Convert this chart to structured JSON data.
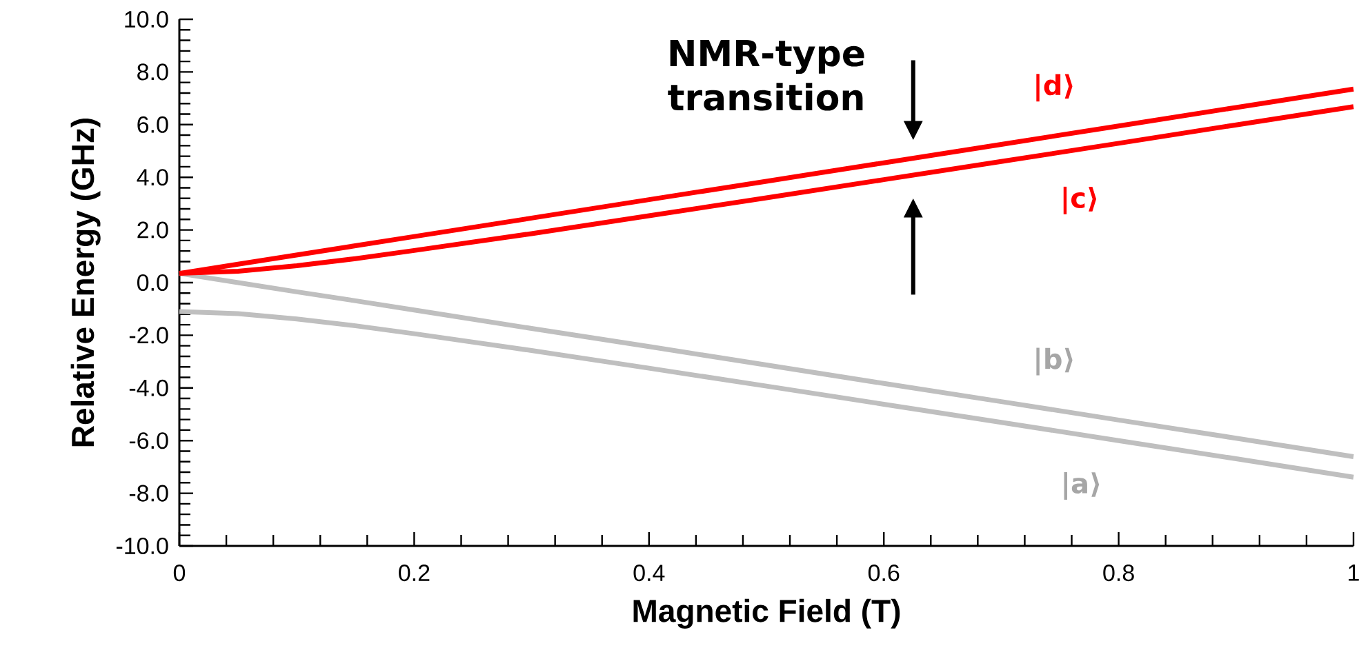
{
  "chart_data": {
    "type": "line",
    "xlabel": "Magnetic Field (T)",
    "ylabel": "Relative Energy (GHz)",
    "x": [
      0,
      0.05,
      0.1,
      0.15,
      0.2,
      0.3,
      0.4,
      0.5,
      0.6,
      0.7,
      0.8,
      0.9,
      1.0
    ],
    "series": [
      {
        "name": "|a⟩",
        "color": "#bfbfbf",
        "values": [
          -1.1,
          -1.18,
          -1.38,
          -1.64,
          -1.94,
          -2.58,
          -3.25,
          -3.93,
          -4.62,
          -5.31,
          -6.0,
          -6.69,
          -7.39
        ]
      },
      {
        "name": "|b⟩",
        "color": "#bfbfbf",
        "values": [
          0.35,
          0.0,
          -0.35,
          -0.69,
          -1.04,
          -1.74,
          -2.43,
          -3.13,
          -3.83,
          -4.52,
          -5.22,
          -5.91,
          -6.61
        ]
      },
      {
        "name": "|c⟩",
        "color": "#ff0000",
        "values": [
          0.35,
          0.43,
          0.64,
          0.91,
          1.22,
          1.86,
          2.54,
          3.22,
          3.91,
          4.6,
          5.29,
          5.99,
          6.68
        ]
      },
      {
        "name": "|d⟩",
        "color": "#ff0000",
        "values": [
          0.35,
          0.7,
          1.05,
          1.4,
          1.75,
          2.45,
          3.15,
          3.85,
          4.55,
          5.25,
          5.95,
          6.65,
          7.35
        ]
      }
    ],
    "xlim": [
      0,
      1
    ],
    "ylim": [
      -10,
      10
    ],
    "xticks": [
      0,
      0.2,
      0.4,
      0.6,
      0.8,
      1
    ],
    "yticks": [
      {
        "value": -10,
        "label": "-10.0"
      },
      {
        "value": -8,
        "label": "-8.0"
      },
      {
        "value": -6,
        "label": "-6.0"
      },
      {
        "value": -4,
        "label": "-4.0"
      },
      {
        "value": -2,
        "label": "-2.0"
      },
      {
        "value": 0,
        "label": "0.0"
      },
      {
        "value": 2,
        "label": "2.0"
      },
      {
        "value": 4,
        "label": "4.0"
      },
      {
        "value": 6,
        "label": "6.0"
      },
      {
        "value": 8,
        "label": "8.0"
      },
      {
        "value": 10,
        "label": "10.0"
      }
    ],
    "annotations": [
      "NMR-type transition"
    ],
    "grid": false,
    "marker": "none",
    "line_style": "solid"
  }
}
